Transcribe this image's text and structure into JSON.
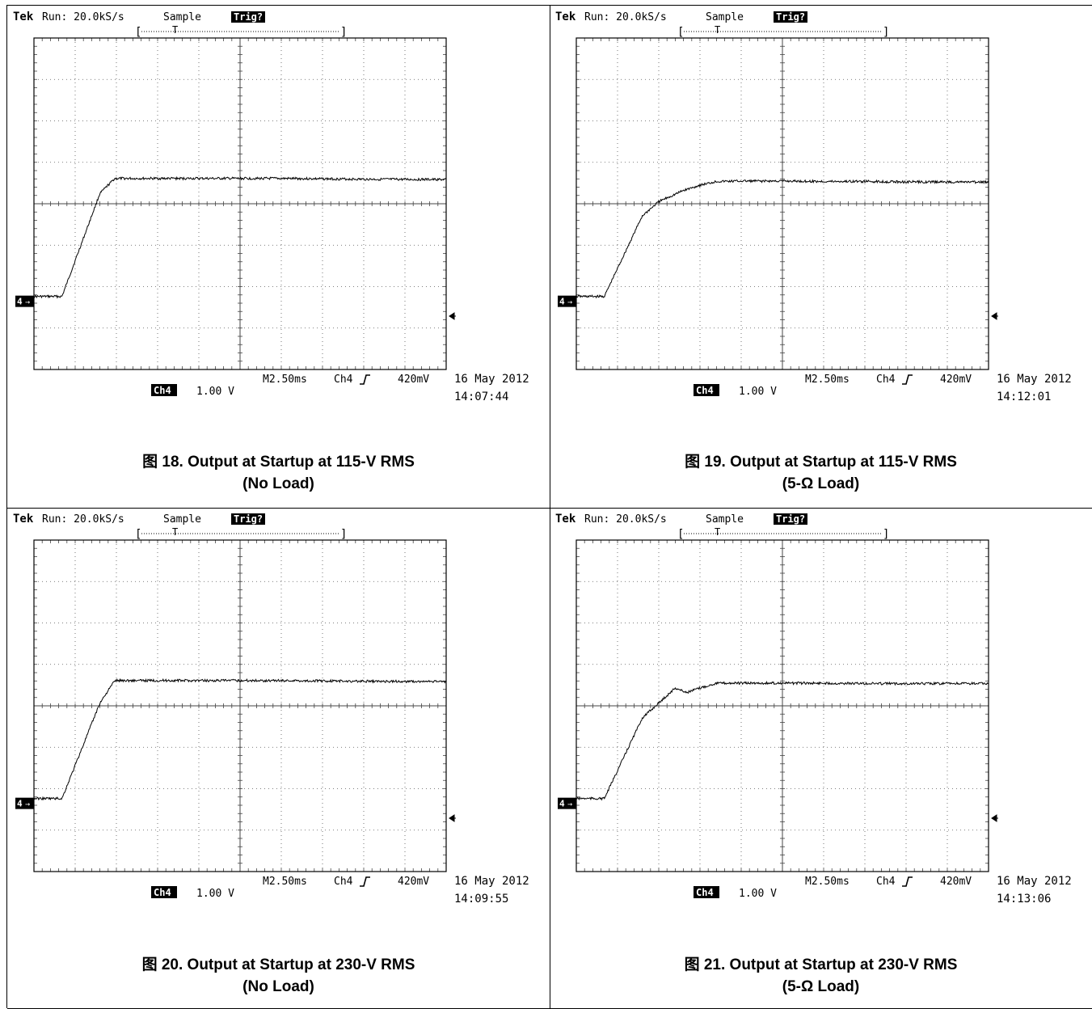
{
  "chart_data": [
    {
      "type": "line",
      "figure_caption": "图 18. Output at Startup at 115-V RMS",
      "caption_line2": "(No Load)",
      "scope": {
        "brand": "Tek",
        "run": "Run: 20.0kS/s",
        "mode": "Sample",
        "trig": "Trig?",
        "ch_badge": "Ch4",
        "ch_scale": "1.00 V",
        "timebase": "M2.50ms",
        "trig_src": "Ch4",
        "trig_level": "420mV",
        "date": "16 May 2012",
        "time": "14:07:44",
        "ch_marker": "4"
      },
      "series": [
        {
          "x": [
            -2.5,
            -0.8,
            1.5,
            2.4,
            5,
            7.5,
            10,
            12.5,
            15,
            17.5,
            22.5
          ],
          "y": [
            -0.95,
            -0.95,
            1.8,
            2.2,
            2.2,
            2.2,
            2.2,
            2.2,
            2.19,
            2.18,
            2.17
          ]
        }
      ],
      "xlim": [
        -2.5,
        22.5
      ],
      "ylim": [
        -2.9,
        5.95
      ],
      "x_unit": "ms",
      "y_unit": "V"
    },
    {
      "type": "line",
      "figure_caption": "图 19. Output at Startup at 115-V RMS",
      "caption_line2": "(5-Ω Load)",
      "scope": {
        "brand": "Tek",
        "run": "Run: 20.0kS/s",
        "mode": "Sample",
        "trig": "Trig?",
        "ch_badge": "Ch4",
        "ch_scale": "1.00 V",
        "timebase": "M2.50ms",
        "trig_src": "Ch4",
        "trig_level": "420mV",
        "date": "16 May 2012",
        "time": "14:12:01",
        "ch_marker": "4"
      },
      "series": [
        {
          "x": [
            -2.5,
            -0.8,
            1.5,
            2.5,
            4.0,
            5.0,
            6.0,
            7.5,
            10,
            12.5,
            15,
            17.5,
            22.5
          ],
          "y": [
            -0.95,
            -0.95,
            1.2,
            1.58,
            1.88,
            2.02,
            2.12,
            2.13,
            2.13,
            2.12,
            2.12,
            2.11,
            2.1
          ]
        }
      ],
      "xlim": [
        -2.5,
        22.5
      ],
      "ylim": [
        -2.9,
        5.95
      ],
      "x_unit": "ms",
      "y_unit": "V"
    },
    {
      "type": "line",
      "figure_caption": "图 20. Output at Startup at 230-V RMS",
      "caption_line2": "(No Load)",
      "scope": {
        "brand": "Tek",
        "run": "Run: 20.0kS/s",
        "mode": "Sample",
        "trig": "Trig?",
        "ch_badge": "Ch4",
        "ch_scale": "1.00 V",
        "timebase": "M2.50ms",
        "trig_src": "Ch4",
        "trig_level": "420mV",
        "date": "16 May 2012",
        "time": "14:09:55",
        "ch_marker": "4"
      },
      "series": [
        {
          "x": [
            -2.5,
            -0.8,
            1.5,
            2.4,
            5,
            7.5,
            10,
            12.5,
            15,
            17.5,
            22.5
          ],
          "y": [
            -0.95,
            -0.95,
            1.6,
            2.2,
            2.2,
            2.2,
            2.2,
            2.2,
            2.19,
            2.18,
            2.17
          ]
        }
      ],
      "xlim": [
        -2.5,
        22.5
      ],
      "ylim": [
        -2.9,
        5.95
      ],
      "x_unit": "ms",
      "y_unit": "V"
    },
    {
      "type": "line",
      "figure_caption": "图 21. Output at Startup at 230-V RMS",
      "caption_line2": "(5-Ω Load)",
      "scope": {
        "brand": "Tek",
        "run": "Run: 20.0kS/s",
        "mode": "Sample",
        "trig": "Trig?",
        "ch_badge": "Ch4",
        "ch_scale": "1.00 V",
        "timebase": "M2.50ms",
        "trig_src": "Ch4",
        "trig_level": "420mV",
        "date": "16 May 2012",
        "time": "14:13:06",
        "ch_marker": "4"
      },
      "series": [
        {
          "x": [
            -2.5,
            -0.8,
            1.5,
            3.5,
            4.2,
            5.0,
            6.0,
            7.5,
            10,
            12.5,
            15,
            17.5,
            22.5
          ],
          "y": [
            -0.95,
            -0.95,
            1.2,
            2.0,
            1.88,
            2.0,
            2.13,
            2.13,
            2.13,
            2.13,
            2.12,
            2.12,
            2.12
          ]
        }
      ],
      "xlim": [
        -2.5,
        22.5
      ],
      "ylim": [
        -2.9,
        5.95
      ],
      "x_unit": "ms",
      "y_unit": "V"
    }
  ]
}
